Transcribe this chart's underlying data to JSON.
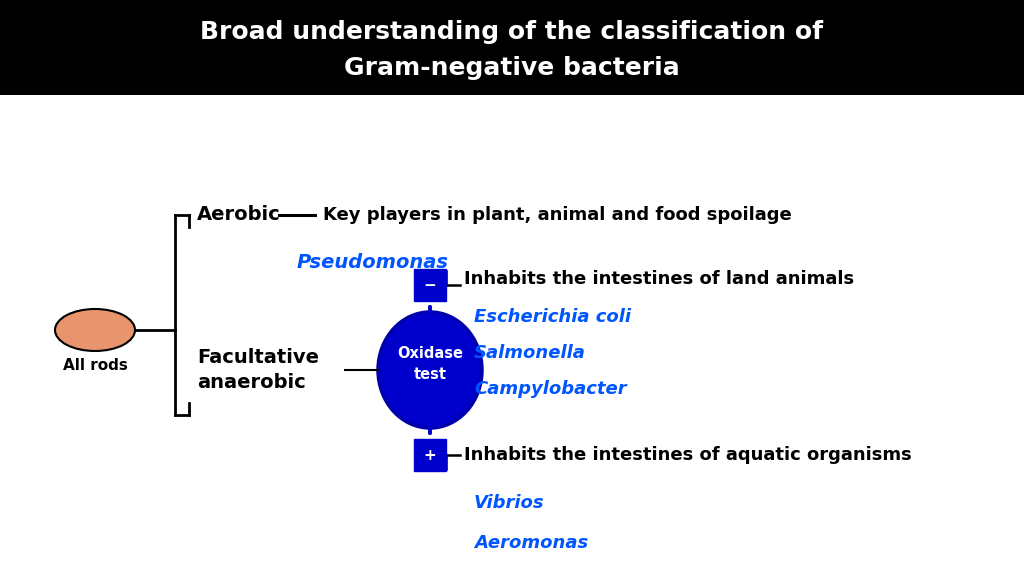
{
  "title_line1": "Broad understanding of the classification of",
  "title_line2": "Gram-negative bacteria",
  "title_bg": "#000000",
  "title_fg": "#ffffff",
  "bg_color": "#ffffff",
  "black": "#000000",
  "blue_dark": "#0000CC",
  "blue_text": "#0055FF",
  "salmon": "#E8956D",
  "nodes": {
    "all_rods_label": "All rods",
    "aerobic_label": "Aerobic",
    "aerobic_desc": "Key players in plant, animal and food spoilage",
    "aerobic_organism": "Pseudomonas",
    "facultative_label": "Facultative\nanaerobic",
    "oxidase_label": "Oxidase\ntest",
    "neg_label": "−",
    "pos_label": "+",
    "neg_desc": "Inhabits the intestines of land animals",
    "neg_organisms": [
      "Escherichia coli",
      "Salmonella",
      "Campylobacter"
    ],
    "pos_desc": "Inhabits the intestines of aquatic organisms",
    "pos_organisms": [
      "Vibrios",
      "Aeromonas"
    ]
  }
}
